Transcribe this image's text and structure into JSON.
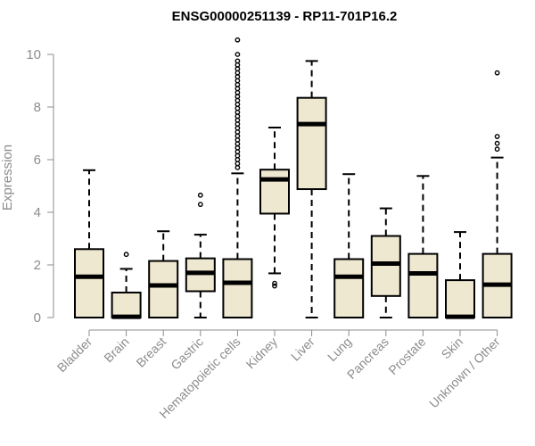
{
  "chart_data": {
    "type": "boxplot",
    "title": "ENSG00000251139 - RP11-701P16.2",
    "xlabel": "",
    "ylabel": "Expression",
    "ylim": [
      0,
      10
    ],
    "yticks": [
      0,
      2,
      4,
      6,
      8,
      10
    ],
    "box_fill": "#efe8d0",
    "box_stroke": "#000000",
    "categories": [
      "Bladder",
      "Brain",
      "Breast",
      "Gastric",
      "Hematopoietic cells",
      "Kidney",
      "Liver",
      "Lung",
      "Pancreas",
      "Prostate",
      "Skin",
      "Unknown / Other"
    ],
    "boxes": [
      {
        "min": 0,
        "q1": 0,
        "median": 1.55,
        "q3": 2.6,
        "max": 5.6,
        "outliers": []
      },
      {
        "min": 0,
        "q1": 0,
        "median": 0.03,
        "q3": 0.95,
        "max": 1.85,
        "outliers": [
          2.4
        ]
      },
      {
        "min": 0,
        "q1": 0,
        "median": 1.22,
        "q3": 2.15,
        "max": 3.28,
        "outliers": []
      },
      {
        "min": 0,
        "q1": 1.0,
        "median": 1.7,
        "q3": 2.25,
        "max": 3.15,
        "outliers": [
          4.3,
          4.65
        ]
      },
      {
        "min": 0,
        "q1": 0,
        "median": 1.32,
        "q3": 2.22,
        "max": 5.48,
        "outliers": [
          5.7,
          5.85,
          6.0,
          6.15,
          6.3,
          6.45,
          6.6,
          6.75,
          6.9,
          7.05,
          7.2,
          7.35,
          7.5,
          7.65,
          7.8,
          7.95,
          8.1,
          8.25,
          8.4,
          8.55,
          8.7,
          8.85,
          9.0,
          9.15,
          9.3,
          9.45,
          9.6,
          9.75,
          10.0,
          10.55
        ]
      },
      {
        "min": 1.68,
        "q1": 3.95,
        "median": 5.25,
        "q3": 5.62,
        "max": 7.22,
        "outliers": [
          1.2,
          1.3
        ]
      },
      {
        "min": 0,
        "q1": 4.88,
        "median": 7.35,
        "q3": 8.35,
        "max": 9.75,
        "outliers": []
      },
      {
        "min": 0,
        "q1": 0,
        "median": 1.55,
        "q3": 2.22,
        "max": 5.45,
        "outliers": []
      },
      {
        "min": 0,
        "q1": 0.82,
        "median": 2.05,
        "q3": 3.1,
        "max": 4.15,
        "outliers": []
      },
      {
        "min": 0,
        "q1": 0,
        "median": 1.68,
        "q3": 2.42,
        "max": 5.38,
        "outliers": []
      },
      {
        "min": 0,
        "q1": 0,
        "median": 0.03,
        "q3": 1.42,
        "max": 3.25,
        "outliers": []
      },
      {
        "min": 0,
        "q1": 0,
        "median": 1.25,
        "q3": 2.42,
        "max": 6.08,
        "outliers": [
          6.4,
          6.62,
          6.88,
          9.3
        ]
      }
    ]
  }
}
